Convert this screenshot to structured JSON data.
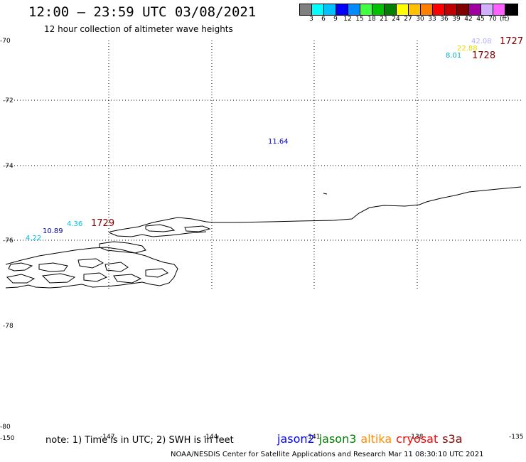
{
  "header": {
    "title": "12:00 – 23:59 UTC 03/08/2021",
    "subtitle": "12 hour collection of altimeter wave heights"
  },
  "colorbar": {
    "colors": [
      "#808080",
      "#00ffff",
      "#00c0ff",
      "#0000ff",
      "#008cff",
      "#40ff40",
      "#00c000",
      "#008000",
      "#ffff00",
      "#ffc000",
      "#ff8000",
      "#ff0000",
      "#c00000",
      "#800000",
      "#a000a0",
      "#d0b0ff",
      "#ff60ff",
      "#000000"
    ],
    "labels": [
      "3",
      "6",
      "9",
      "12",
      "15",
      "18",
      "21",
      "24",
      "27",
      "30",
      "33",
      "36",
      "39",
      "42",
      "45",
      "70"
    ],
    "unit": "(ft)"
  },
  "map": {
    "y_labels": [
      "-70",
      "-72",
      "-74",
      "-76",
      "-78",
      "-80"
    ],
    "x_labels": [
      "-150",
      "-147",
      "-144",
      "-141",
      "-138",
      "-135"
    ]
  },
  "observations": [
    {
      "text": "42.08",
      "color": "#b0b0ff"
    },
    {
      "text": "22.88",
      "color": "#e0e000"
    },
    {
      "text": "8.01",
      "color": "#00b0c0"
    },
    {
      "text": "11.64",
      "color": "#0000c0"
    },
    {
      "text": "4.36",
      "color": "#00c0e0"
    },
    {
      "text": "10.89",
      "color": "#0000a0"
    },
    {
      "text": "4.22",
      "color": "#00c0e0"
    }
  ],
  "pass_labels": [
    {
      "text": "1727",
      "color": "#800000"
    },
    {
      "text": "1728",
      "color": "#800000"
    },
    {
      "text": "1729",
      "color": "#800000"
    }
  ],
  "footer": {
    "note": "note: 1) Time is in UTC; 2) SWH is in feet",
    "credit": "NOAA/NESDIS Center for Satellite Applications and Research    Mar 11 08:30:10 UTC 2021",
    "satellites": [
      {
        "name": "jason2",
        "color": "#0000ff"
      },
      {
        "name": "jason3",
        "color": "#008000"
      },
      {
        "name": "altika",
        "color": "#ff8c00"
      },
      {
        "name": "cryosat",
        "color": "#ff0000"
      },
      {
        "name": "s3a",
        "color": "#800000"
      }
    ]
  }
}
